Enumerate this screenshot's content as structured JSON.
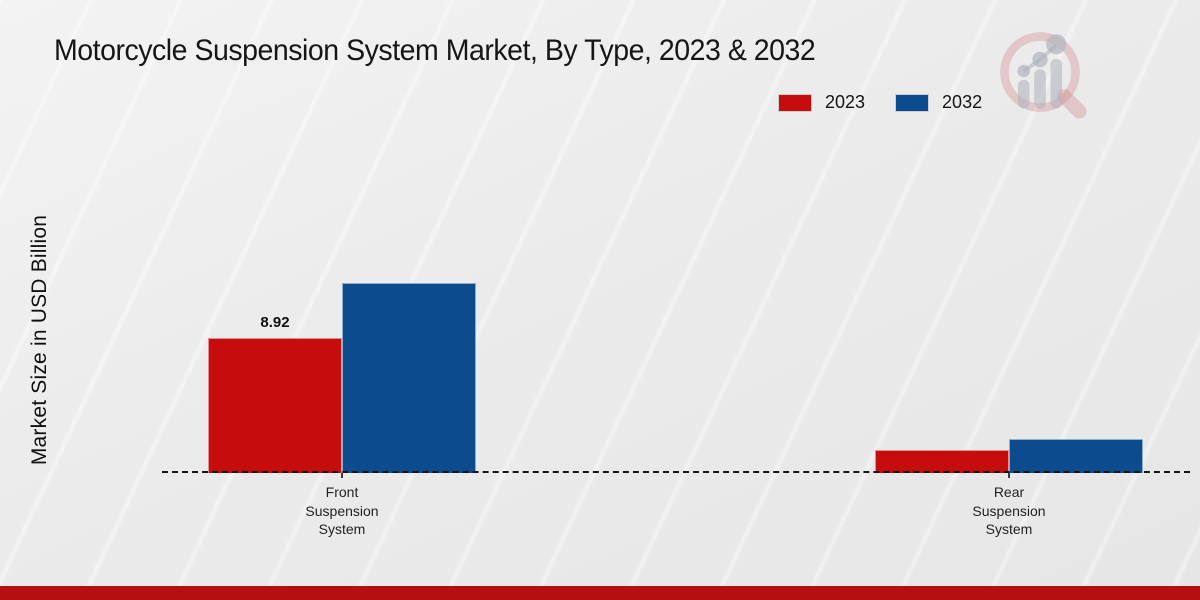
{
  "title": "Motorcycle Suspension System Market, By Type, 2023 & 2032",
  "y_axis_label": "Market Size in USD Billion",
  "legend": [
    {
      "label": "2023",
      "color": "#c50d0d"
    },
    {
      "label": "2032",
      "color": "#0c4b8e"
    }
  ],
  "colors": {
    "series_2023": "#c50d0d",
    "series_2032": "#0c4b8e",
    "footer_strip": "#b50f0f",
    "axis_line": "#161616"
  },
  "chart_data": {
    "type": "bar",
    "categories": [
      "Front Suspension System",
      "Rear Suspension System"
    ],
    "series": [
      {
        "name": "2023",
        "color": "#c50d0d",
        "values": [
          8.92,
          1.55
        ],
        "shown_labels": [
          "8.92",
          ""
        ]
      },
      {
        "name": "2032",
        "color": "#0c4b8e",
        "values": [
          12.55,
          2.25
        ],
        "shown_labels": [
          "",
          ""
        ]
      }
    ],
    "title": "Motorcycle Suspension System Market, By Type, 2023 & 2032",
    "xlabel": "",
    "ylabel": "Market Size in USD Billion",
    "ylim": [
      0,
      13.5
    ],
    "grid": false,
    "baseline_style": "dashed",
    "legend_position": "top-right",
    "only_labeled_value": "8.92"
  },
  "watermark": {
    "name": "market-research-future-logo"
  }
}
